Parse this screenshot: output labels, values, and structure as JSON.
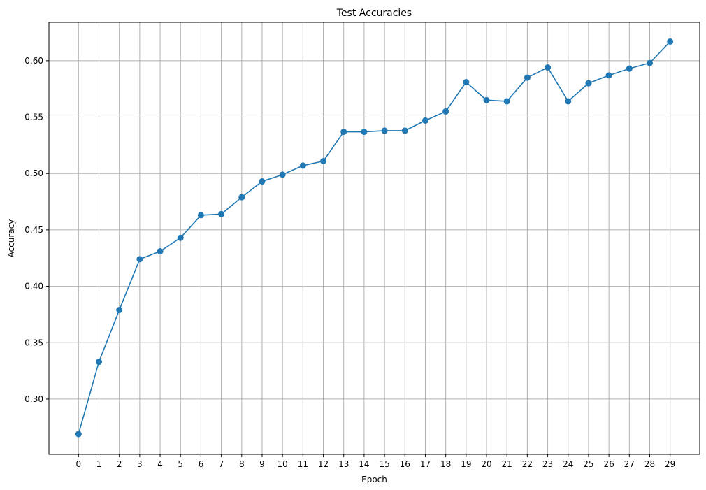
{
  "chart_data": {
    "type": "line",
    "title": "Test Accuracies",
    "xlabel": "Epoch",
    "ylabel": "Accuracy",
    "x": [
      0,
      1,
      2,
      3,
      4,
      5,
      6,
      7,
      8,
      9,
      10,
      11,
      12,
      13,
      14,
      15,
      16,
      17,
      18,
      19,
      20,
      21,
      22,
      23,
      24,
      25,
      26,
      27,
      28,
      29
    ],
    "x_ticks": [
      "0",
      "1",
      "2",
      "3",
      "4",
      "5",
      "6",
      "7",
      "8",
      "9",
      "10",
      "11",
      "12",
      "13",
      "14",
      "15",
      "16",
      "17",
      "18",
      "19",
      "20",
      "21",
      "22",
      "23",
      "24",
      "25",
      "26",
      "27",
      "28",
      "29"
    ],
    "xlim": [
      -1.45,
      30.45
    ],
    "y_ticks": [
      0.3,
      0.35,
      0.4,
      0.45,
      0.5,
      0.55,
      0.6
    ],
    "y_tick_labels": [
      "0.30",
      "0.35",
      "0.40",
      "0.45",
      "0.50",
      "0.55",
      "0.60"
    ],
    "ylim": [
      0.251,
      0.634
    ],
    "grid": true,
    "series": [
      {
        "color": "#1f77b4",
        "marker": "circle",
        "values": [
          0.269,
          0.333,
          0.379,
          0.424,
          0.431,
          0.443,
          0.463,
          0.464,
          0.479,
          0.493,
          0.499,
          0.507,
          0.511,
          0.537,
          0.537,
          0.538,
          0.538,
          0.547,
          0.555,
          0.581,
          0.565,
          0.564,
          0.585,
          0.594,
          0.564,
          0.58,
          0.587,
          0.593,
          0.598,
          0.617
        ]
      }
    ],
    "colors": {
      "grid": "#b0b0b0",
      "axes": "#000000"
    }
  }
}
